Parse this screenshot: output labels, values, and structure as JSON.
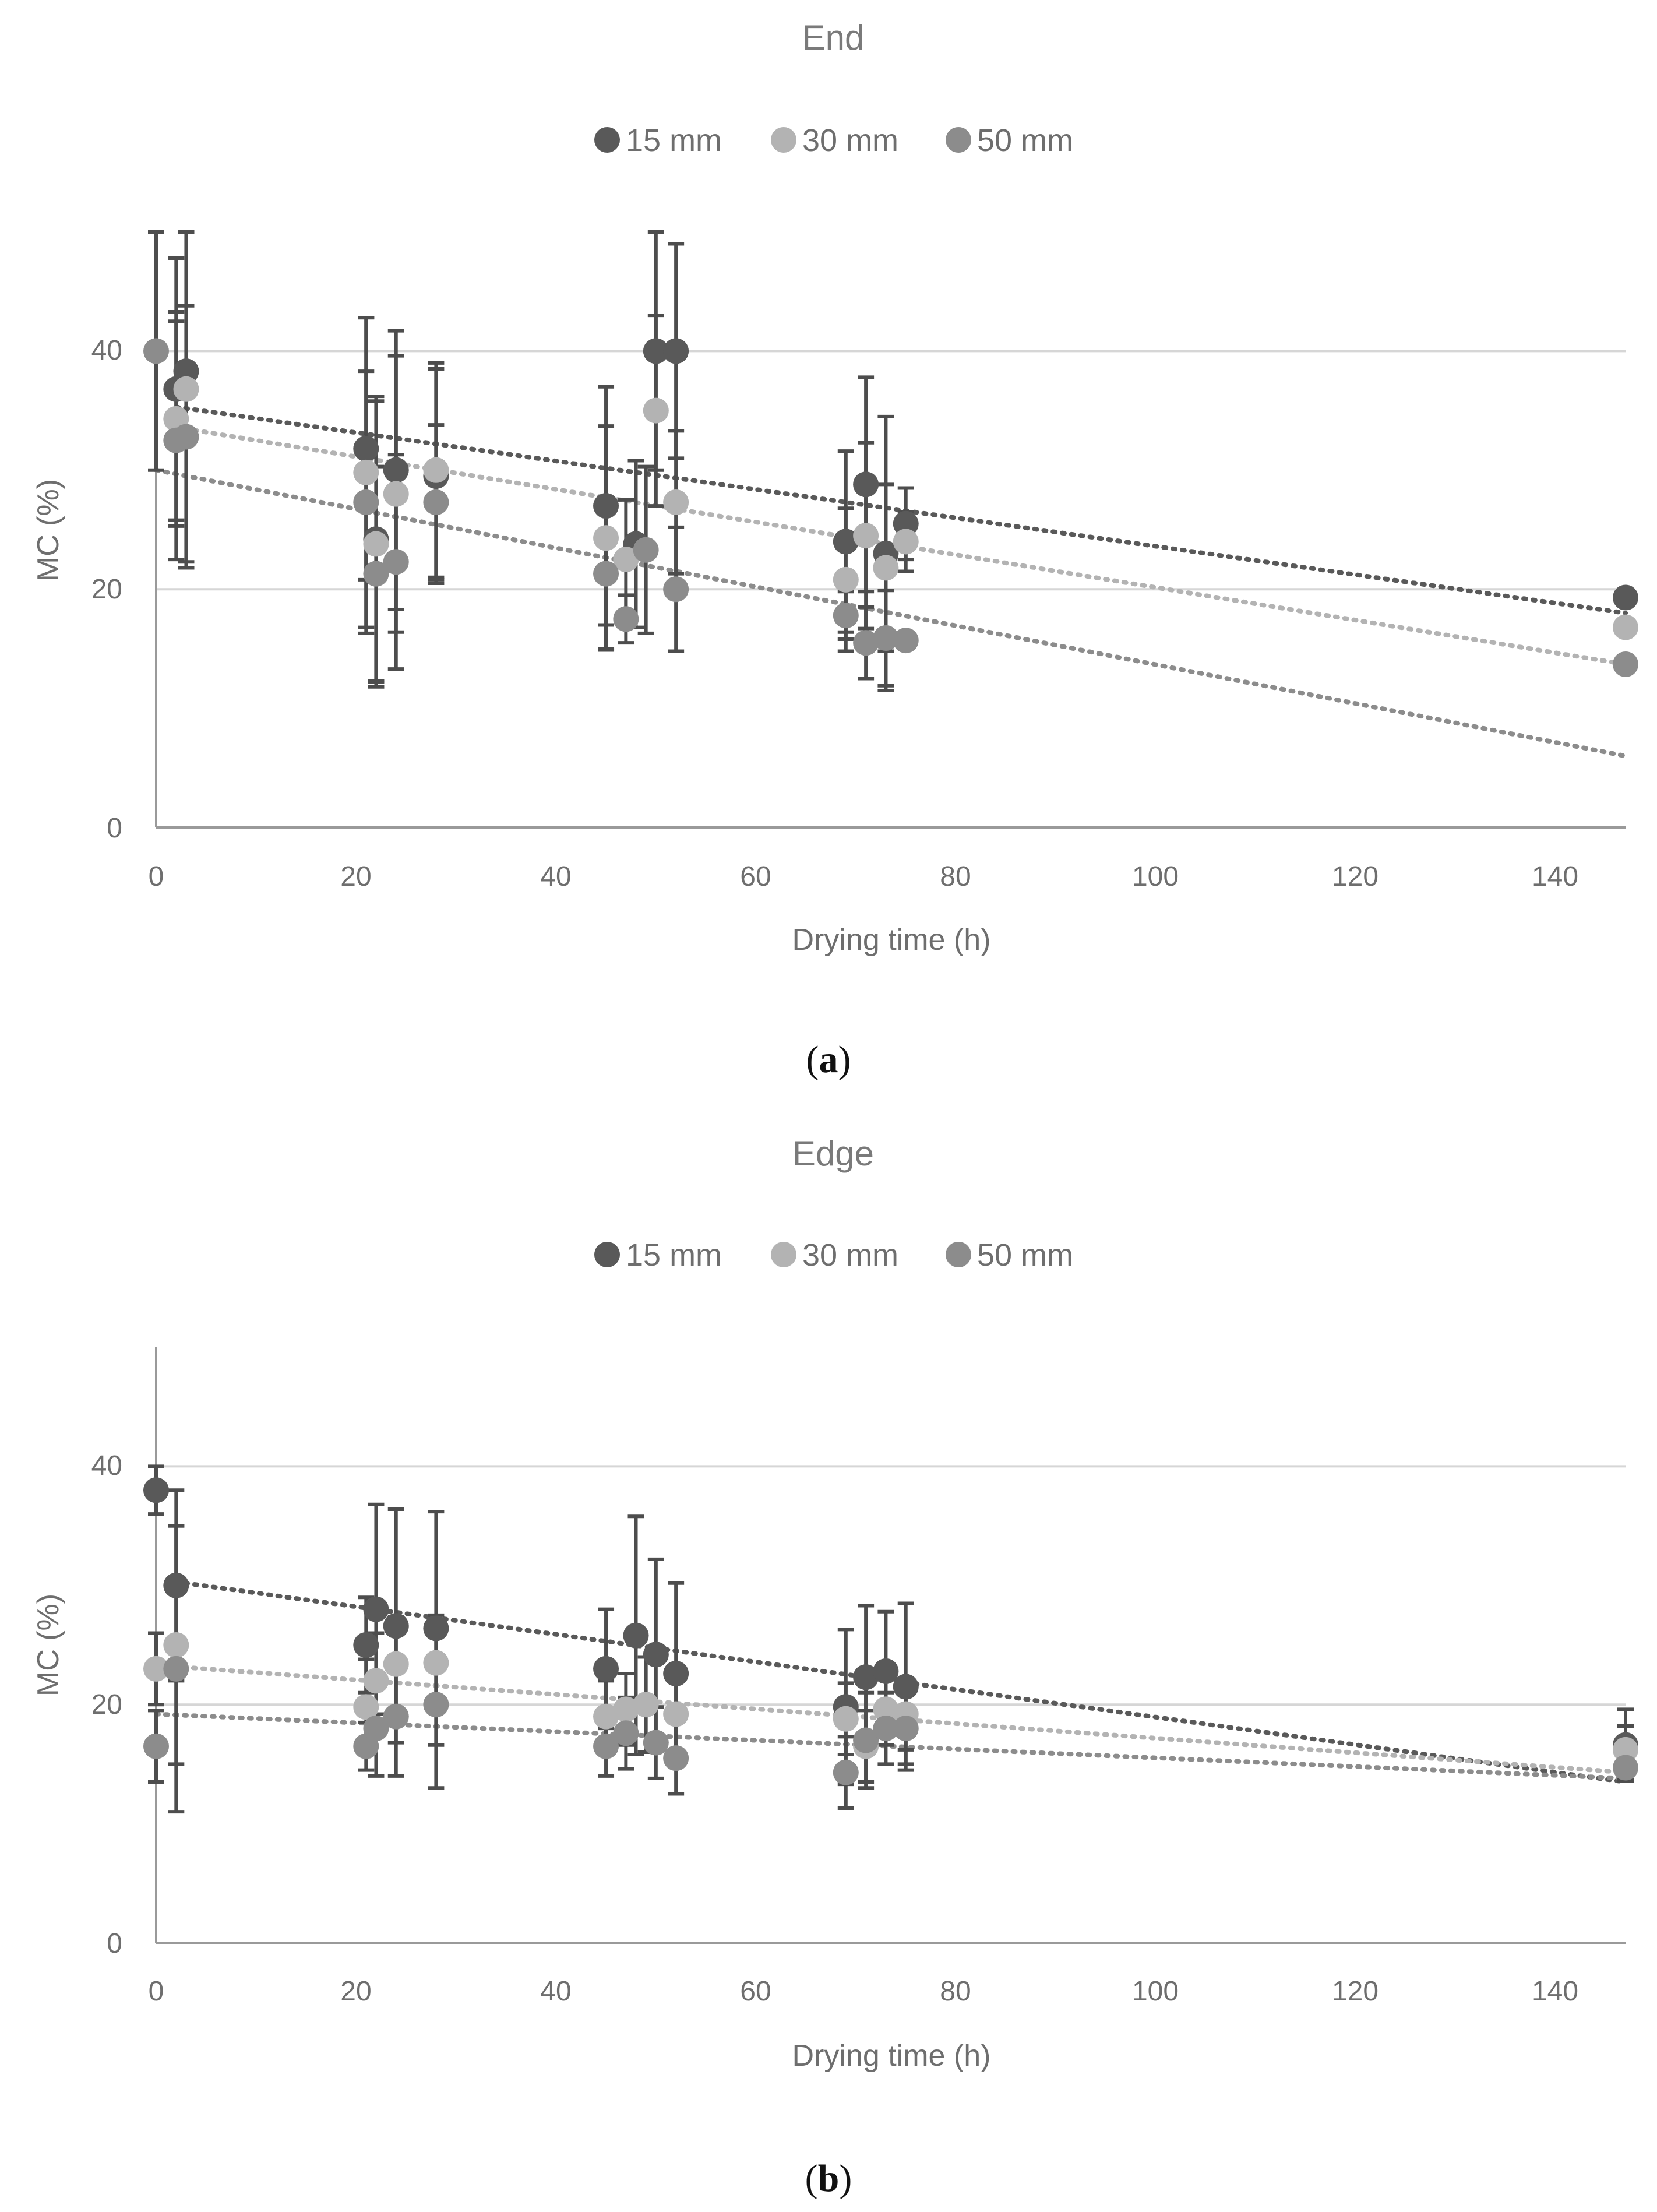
{
  "chart_data": [
    {
      "type": "scatter",
      "title": "End",
      "caption": "a",
      "xlabel": "Drying time (h)",
      "ylabel": "MC (%)",
      "xlim": [
        0,
        147
      ],
      "ylim": [
        0,
        50
      ],
      "xticks": [
        "0",
        "20",
        "40",
        "60",
        "80",
        "100",
        "120",
        "140"
      ],
      "yticks": [
        "0",
        "20",
        "40"
      ],
      "trendline": "linear, dotted",
      "series": [
        {
          "name": "15 mm",
          "color": "#595959",
          "points": [
            {
              "x": 2,
              "y": 36.8,
              "err": 11
            },
            {
              "x": 3,
              "y": 38.3,
              "err": 16
            },
            {
              "x": 21,
              "y": 31.8,
              "err": 11
            },
            {
              "x": 22,
              "y": 24.2,
              "err": 12
            },
            {
              "x": 24,
              "y": 30,
              "err": 11.7
            },
            {
              "x": 28,
              "y": 29.5,
              "err": 9
            },
            {
              "x": 45,
              "y": 27,
              "err": 10
            },
            {
              "x": 48,
              "y": 23.8,
              "err": 7
            },
            {
              "x": 50,
              "y": 40,
              "err": 10
            },
            {
              "x": 52,
              "y": 40,
              "err": 9
            },
            {
              "x": 69,
              "y": 24,
              "err": 7.6
            },
            {
              "x": 71,
              "y": 28.8,
              "err": 9
            },
            {
              "x": 73,
              "y": 23,
              "err": 11.5
            },
            {
              "x": 75,
              "y": 25.5,
              "err": 3
            },
            {
              "x": 147,
              "y": 19.3,
              "err": 0.5
            }
          ]
        },
        {
          "name": "30 mm",
          "color": "#b3b3b3",
          "points": [
            {
              "x": 2,
              "y": 34.3,
              "err": 9
            },
            {
              "x": 3,
              "y": 36.8,
              "err": 15
            },
            {
              "x": 21,
              "y": 29.8,
              "err": 13
            },
            {
              "x": 22,
              "y": 23.8,
              "err": 12
            },
            {
              "x": 24,
              "y": 28,
              "err": 11.6
            },
            {
              "x": 28,
              "y": 30,
              "err": 9
            },
            {
              "x": 45,
              "y": 24.3,
              "err": 9.4
            },
            {
              "x": 47,
              "y": 22.5,
              "err": 5
            },
            {
              "x": 50,
              "y": 35,
              "err": 8
            },
            {
              "x": 52,
              "y": 27.3,
              "err": 6
            },
            {
              "x": 69,
              "y": 20.8,
              "err": 6
            },
            {
              "x": 71,
              "y": 24.5,
              "err": 7.8
            },
            {
              "x": 73,
              "y": 21.8,
              "err": 7
            },
            {
              "x": 75,
              "y": 24,
              "err": 2.5
            },
            {
              "x": 147,
              "y": 16.8,
              "err": 0.5
            }
          ]
        },
        {
          "name": "50 mm",
          "color": "#8c8c8c",
          "points": [
            {
              "x": 0,
              "y": 40,
              "err": 10
            },
            {
              "x": 2,
              "y": 32.5,
              "err": 10
            },
            {
              "x": 3,
              "y": 32.8,
              "err": 11
            },
            {
              "x": 21,
              "y": 27.3,
              "err": 11
            },
            {
              "x": 22,
              "y": 21.3,
              "err": 9
            },
            {
              "x": 24,
              "y": 22.3,
              "err": 9
            },
            {
              "x": 28,
              "y": 27.3,
              "err": 6.5
            },
            {
              "x": 45,
              "y": 21.3,
              "err": 6.3
            },
            {
              "x": 47,
              "y": 17.5,
              "err": 2
            },
            {
              "x": 49,
              "y": 23.3,
              "err": 7
            },
            {
              "x": 52,
              "y": 20,
              "err": 5.2
            },
            {
              "x": 69,
              "y": 17.8,
              "err": 2
            },
            {
              "x": 71,
              "y": 15.5,
              "err": 3
            },
            {
              "x": 73,
              "y": 15.9,
              "err": 4
            },
            {
              "x": 75,
              "y": 15.7,
              "err": 0.5
            },
            {
              "x": 147,
              "y": 13.7,
              "err": 0.5
            }
          ]
        }
      ],
      "trendlines": [
        {
          "series": "15 mm",
          "from": [
            2,
            35.3
          ],
          "to": [
            147,
            18
          ]
        },
        {
          "series": "30 mm",
          "from": [
            2,
            33.6
          ],
          "to": [
            147,
            13.7
          ]
        },
        {
          "series": "50 mm",
          "from": [
            0,
            30
          ],
          "to": [
            147,
            6
          ]
        }
      ]
    },
    {
      "type": "scatter",
      "title": "Edge",
      "caption": "b",
      "xlabel": "Drying time (h)",
      "ylabel": "MC (%)",
      "xlim": [
        0,
        147
      ],
      "ylim": [
        0,
        50
      ],
      "xticks": [
        "0",
        "20",
        "40",
        "60",
        "80",
        "100",
        "120",
        "140"
      ],
      "yticks": [
        "0",
        "20",
        "40"
      ],
      "trendline": "linear, dotted",
      "series": [
        {
          "name": "15 mm",
          "color": "#595959",
          "points": [
            {
              "x": 0,
              "y": 38,
              "err": 2
            },
            {
              "x": 2,
              "y": 30,
              "err": 8
            },
            {
              "x": 21,
              "y": 25,
              "err": 4
            },
            {
              "x": 22,
              "y": 28,
              "err": 8.8
            },
            {
              "x": 24,
              "y": 26.6,
              "err": 9.8
            },
            {
              "x": 28,
              "y": 26.4,
              "err": 9.8
            },
            {
              "x": 45,
              "y": 23,
              "err": 5
            },
            {
              "x": 48,
              "y": 25.8,
              "err": 10
            },
            {
              "x": 50,
              "y": 24.2,
              "err": 8
            },
            {
              "x": 52,
              "y": 22.6,
              "err": 7.6
            },
            {
              "x": 69,
              "y": 19.8,
              "err": 6.5
            },
            {
              "x": 71,
              "y": 22.3,
              "err": 6
            },
            {
              "x": 73,
              "y": 22.8,
              "err": 5
            },
            {
              "x": 75,
              "y": 21.5,
              "err": 7
            },
            {
              "x": 147,
              "y": 16.6,
              "err": 3
            }
          ]
        },
        {
          "name": "30 mm",
          "color": "#b3b3b3",
          "points": [
            {
              "x": 0,
              "y": 23,
              "err": 3
            },
            {
              "x": 2,
              "y": 25,
              "err": 10
            },
            {
              "x": 21,
              "y": 19.8,
              "err": 4
            },
            {
              "x": 22,
              "y": 22,
              "err": 4
            },
            {
              "x": 24,
              "y": 23.4,
              "err": 4
            },
            {
              "x": 28,
              "y": 23.5,
              "err": 4
            },
            {
              "x": 45,
              "y": 19,
              "err": 3
            },
            {
              "x": 47,
              "y": 19.6,
              "err": 3
            },
            {
              "x": 49,
              "y": 20,
              "err": 4
            },
            {
              "x": 52,
              "y": 19.2,
              "err": 3
            },
            {
              "x": 69,
              "y": 18.8,
              "err": 3
            },
            {
              "x": 71,
              "y": 16.5,
              "err": 3
            },
            {
              "x": 73,
              "y": 19.6,
              "err": 3
            },
            {
              "x": 75,
              "y": 19.2,
              "err": 3
            },
            {
              "x": 147,
              "y": 16.2,
              "err": 2
            }
          ]
        },
        {
          "name": "50 mm",
          "color": "#8c8c8c",
          "points": [
            {
              "x": 0,
              "y": 16.5,
              "err": 3
            },
            {
              "x": 2,
              "y": 23,
              "err": 12
            },
            {
              "x": 21,
              "y": 16.5,
              "err": 2
            },
            {
              "x": 22,
              "y": 18,
              "err": 4
            },
            {
              "x": 24,
              "y": 19,
              "err": 5
            },
            {
              "x": 28,
              "y": 20,
              "err": 7
            },
            {
              "x": 45,
              "y": 16.5,
              "err": 2.5
            },
            {
              "x": 47,
              "y": 17.6,
              "err": 3
            },
            {
              "x": 50,
              "y": 16.8,
              "err": 3
            },
            {
              "x": 52,
              "y": 15.5,
              "err": 3
            },
            {
              "x": 69,
              "y": 14.3,
              "err": 3
            },
            {
              "x": 71,
              "y": 17,
              "err": 4
            },
            {
              "x": 73,
              "y": 18,
              "err": 3
            },
            {
              "x": 75,
              "y": 18,
              "err": 3
            },
            {
              "x": 147,
              "y": 14.7,
              "err": 1
            }
          ]
        }
      ],
      "trendlines": [
        {
          "series": "15 mm",
          "from": [
            2,
            30.3
          ],
          "to": [
            147,
            13.5
          ]
        },
        {
          "series": "30 mm",
          "from": [
            0,
            23.3
          ],
          "to": [
            147,
            14.3
          ]
        },
        {
          "series": "50 mm",
          "from": [
            0,
            19.2
          ],
          "to": [
            147,
            13.8
          ]
        }
      ]
    }
  ]
}
